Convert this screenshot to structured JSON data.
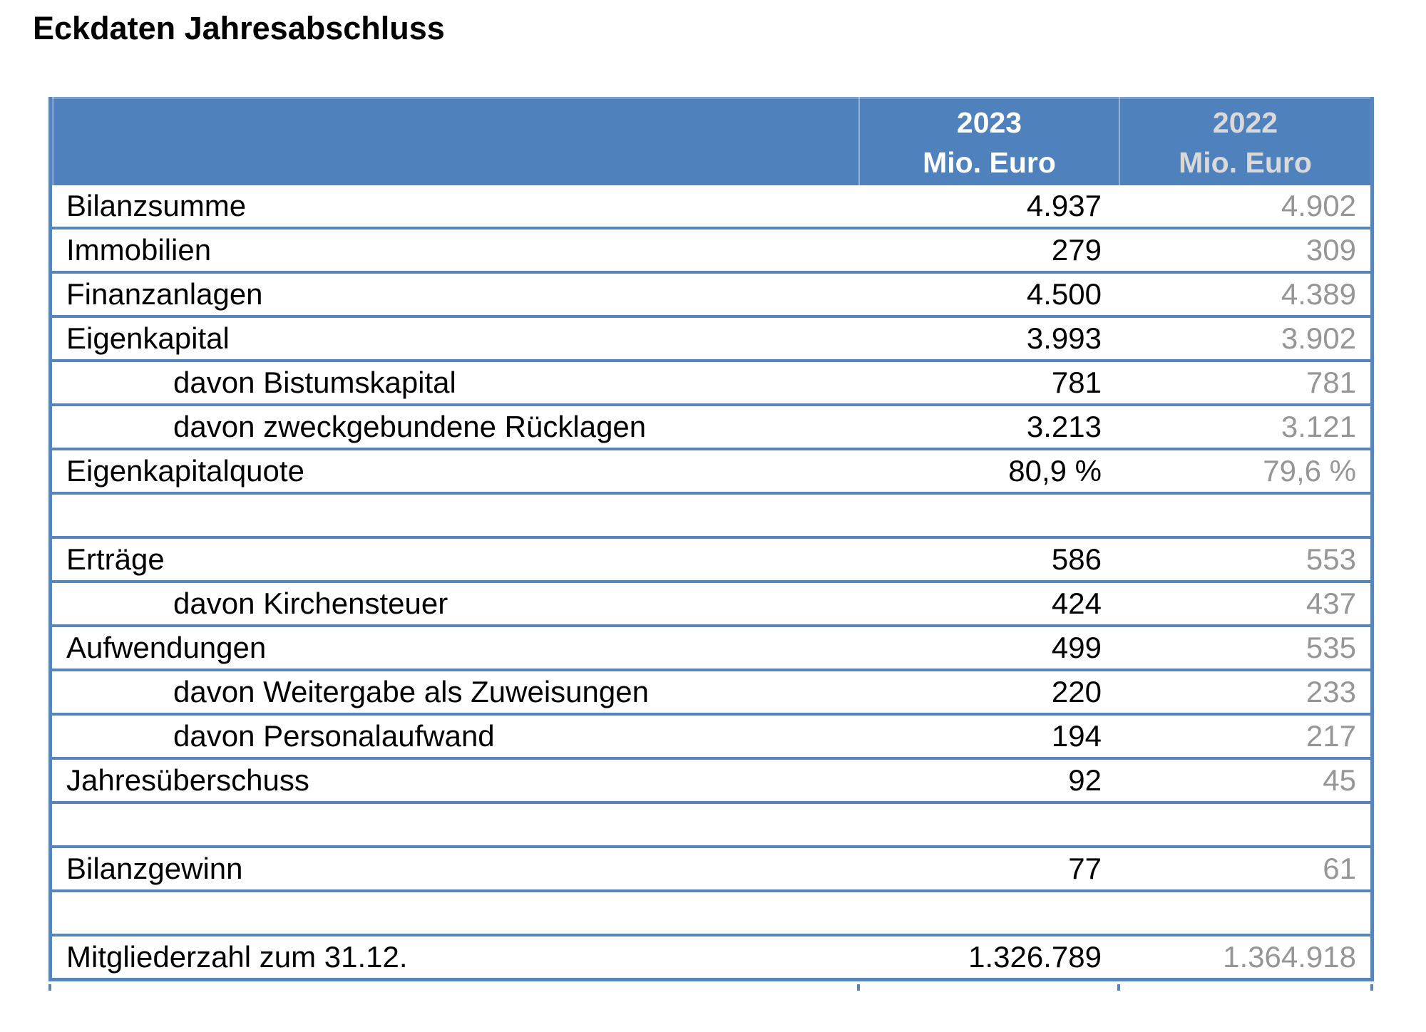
{
  "page": {
    "title": "Eckdaten Jahresabschluss"
  },
  "table": {
    "header": {
      "col_2023": {
        "line1": "2023",
        "line2": "Mio. Euro"
      },
      "col_2022": {
        "line1": "2022",
        "line2": "Mio. Euro"
      }
    },
    "rows": [
      {
        "label": "Bilanzsumme",
        "v2023": "4.937",
        "v2022": "4.902",
        "indent": false,
        "empty": false
      },
      {
        "label": "Immobilien",
        "v2023": "279",
        "v2022": "309",
        "indent": false,
        "empty": false
      },
      {
        "label": "Finanzanlagen",
        "v2023": "4.500",
        "v2022": "4.389",
        "indent": false,
        "empty": false
      },
      {
        "label": "Eigenkapital",
        "v2023": "3.993",
        "v2022": "3.902",
        "indent": false,
        "empty": false
      },
      {
        "label": "davon Bistumskapital",
        "v2023": "781",
        "v2022": "781",
        "indent": true,
        "empty": false
      },
      {
        "label": "davon zweckgebundene Rücklagen",
        "v2023": "3.213",
        "v2022": "3.121",
        "indent": true,
        "empty": false
      },
      {
        "label": "Eigenkapitalquote",
        "v2023": "80,9 %",
        "v2022": "79,6 %",
        "indent": false,
        "empty": false
      },
      {
        "label": "",
        "v2023": "",
        "v2022": "",
        "indent": false,
        "empty": true
      },
      {
        "label": "Erträge",
        "v2023": "586",
        "v2022": "553",
        "indent": false,
        "empty": false
      },
      {
        "label": "davon Kirchensteuer",
        "v2023": "424",
        "v2022": "437",
        "indent": true,
        "empty": false
      },
      {
        "label": "Aufwendungen",
        "v2023": "499",
        "v2022": "535",
        "indent": false,
        "empty": false
      },
      {
        "label": "davon Weitergabe als Zuweisungen",
        "v2023": "220",
        "v2022": "233",
        "indent": true,
        "empty": false
      },
      {
        "label": "davon Personalaufwand",
        "v2023": "194",
        "v2022": "217",
        "indent": true,
        "empty": false
      },
      {
        "label": "Jahresüberschuss",
        "v2023": "92",
        "v2022": "45",
        "indent": false,
        "empty": false
      },
      {
        "label": "",
        "v2023": "",
        "v2022": "",
        "indent": false,
        "empty": true
      },
      {
        "label": "Bilanzgewinn",
        "v2023": "77",
        "v2022": "61",
        "indent": false,
        "empty": false
      },
      {
        "label": "",
        "v2023": "",
        "v2022": "",
        "indent": false,
        "empty": true
      },
      {
        "label": "Mitgliederzahl zum 31.12.",
        "v2023": "1.326.789",
        "v2022": "1.364.918",
        "indent": false,
        "empty": false
      }
    ],
    "colors": {
      "header_bg": "#4f81bd",
      "border": "#5886ba",
      "header_text_2023": "#ffffff",
      "header_text_2022": "#d9d9d9",
      "value_2022_text": "#969696",
      "body_text": "#000000"
    }
  }
}
